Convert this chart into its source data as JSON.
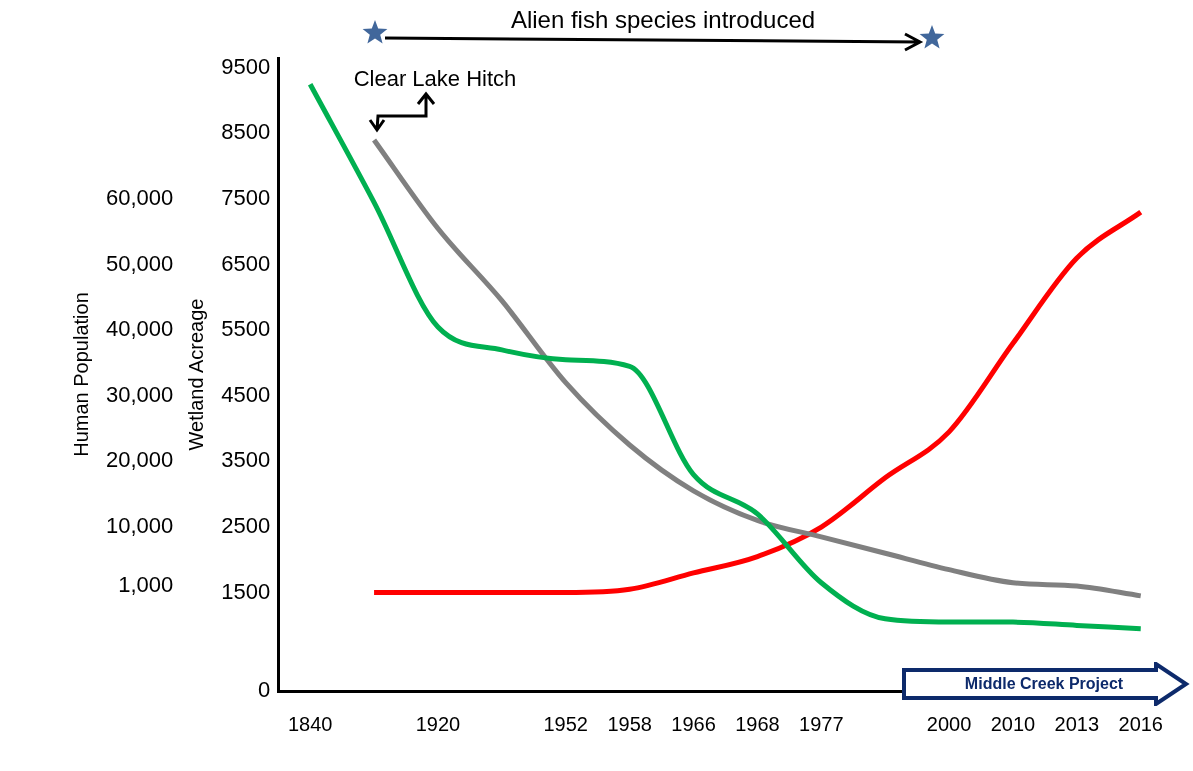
{
  "chart_data": {
    "type": "line",
    "categories": [
      "1840",
      null,
      "1920",
      null,
      "1952",
      "1958",
      "1966",
      "1968",
      "1977",
      null,
      "2000",
      "2010",
      "2013",
      "2016"
    ],
    "series": [
      {
        "color": "#00b050",
        "values": [
          9250,
          7450,
          5550,
          5200,
          5050,
          4950,
          3300,
          2700,
          1650,
          1100,
          1050,
          1050,
          1000,
          950
        ]
      },
      {
        "color": "#808080",
        "values": [
          null,
          8400,
          7050,
          5950,
          4700,
          3750,
          3050,
          2600,
          2350,
          2100,
          1850,
          1650,
          1600,
          1450
        ]
      },
      {
        "color": "#ff0000",
        "axis": "y2",
        "values": [
          null,
          0,
          0,
          0,
          0,
          500,
          3000,
          5500,
          10000,
          17500,
          24500,
          38000,
          51000,
          58000
        ]
      }
    ],
    "ylabel": "Wetland Acreage",
    "y2label": "Human Population",
    "ylim": [
      0,
      9650
    ],
    "yticks": [
      0,
      1500,
      2500,
      3500,
      4500,
      5500,
      6500,
      7500,
      8500,
      9500
    ],
    "y2lim": [
      -15000,
      81500
    ],
    "y2ticks": [
      {
        "value": 1000,
        "label": "1,000"
      },
      {
        "value": 10000,
        "label": "10,000"
      },
      {
        "value": 20000,
        "label": "20,000"
      },
      {
        "value": 30000,
        "label": "30,000"
      },
      {
        "value": 40000,
        "label": "40,000"
      },
      {
        "value": 50000,
        "label": "50,000"
      },
      {
        "value": 60000,
        "label": "60,000"
      }
    ],
    "annotations": [
      "Alien fish species introduced",
      "Clear Lake Hitch",
      "Middle Creek Project"
    ],
    "grid": false,
    "legend": false,
    "marker": "none"
  }
}
